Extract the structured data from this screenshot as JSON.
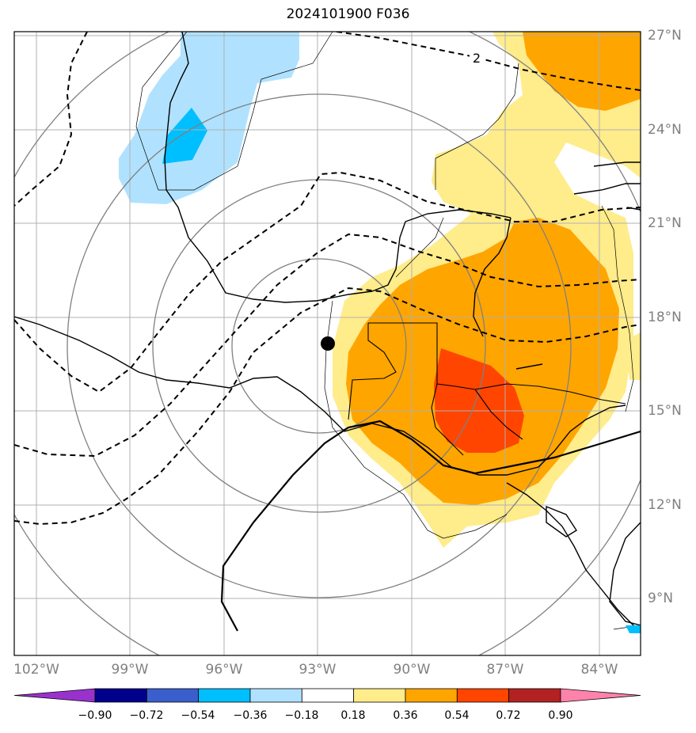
{
  "title": "2024101900 F036",
  "contour_label": "2",
  "lat_labels": [
    "27°N",
    "24°N",
    "21°N",
    "18°N",
    "15°N",
    "12°N",
    "9°N"
  ],
  "lon_labels": [
    "102°W",
    "99°W",
    "96°W",
    "93°W",
    "90°W",
    "87°W",
    "84°W"
  ],
  "colorbar": {
    "ticks": [
      "−0.90",
      "−0.72",
      "−0.54",
      "−0.36",
      "−0.18",
      "0.18",
      "0.36",
      "0.54",
      "0.72",
      "0.90"
    ],
    "colors": [
      "#9932cc",
      "#00008b",
      "#3a5fcd",
      "#00bfff",
      "#b0e2ff",
      "#ffffff",
      "#ffec8b",
      "#ffa500",
      "#ff4500",
      "#b22222",
      "#ff82ab"
    ]
  },
  "colors": {
    "light_blue": "#b0e2ff",
    "deep_sky_blue": "#00bfff",
    "light_yellow": "#ffec8b",
    "orange": "#ffa500",
    "orange_red": "#ff4500",
    "grid": "#b0b0b0",
    "range_rings": "#808080"
  }
}
